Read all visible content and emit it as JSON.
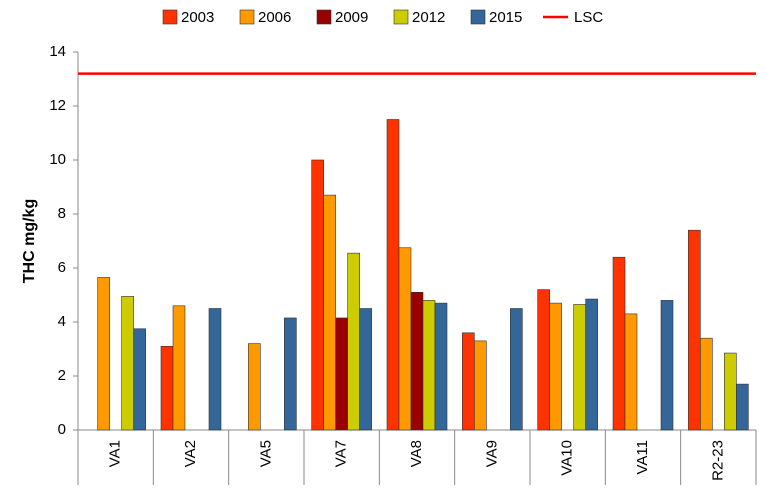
{
  "chart_data": {
    "type": "bar",
    "y_label": "THC mg/kg",
    "categories": [
      "VA1",
      "VA2",
      "VA5",
      "VA7",
      "VA8",
      "VA9",
      "VA10",
      "VA11",
      "R2-23"
    ],
    "series": [
      {
        "name": "2003",
        "color": "#ff3300",
        "values": [
          null,
          3.1,
          null,
          10.0,
          11.5,
          3.6,
          5.2,
          6.4,
          7.4
        ]
      },
      {
        "name": "2006",
        "color": "#ff9900",
        "values": [
          5.65,
          4.6,
          3.2,
          8.7,
          6.75,
          3.3,
          4.7,
          4.3,
          3.4
        ]
      },
      {
        "name": "2009",
        "color": "#990000",
        "values": [
          null,
          null,
          null,
          4.15,
          5.1,
          null,
          null,
          null,
          null
        ]
      },
      {
        "name": "2012",
        "color": "#cccc00",
        "values": [
          4.95,
          null,
          null,
          6.55,
          4.8,
          null,
          4.65,
          null,
          2.85
        ]
      },
      {
        "name": "2015",
        "color": "#336699",
        "values": [
          3.75,
          4.5,
          4.15,
          4.5,
          4.7,
          4.5,
          4.85,
          4.8,
          1.7
        ]
      }
    ],
    "reference_lines": [
      {
        "name": "LSC",
        "value": 13.2,
        "color": "#ff0000"
      }
    ],
    "ylim": [
      0,
      14
    ],
    "yticks": [
      0,
      2,
      4,
      6,
      8,
      10,
      12,
      14
    ]
  }
}
